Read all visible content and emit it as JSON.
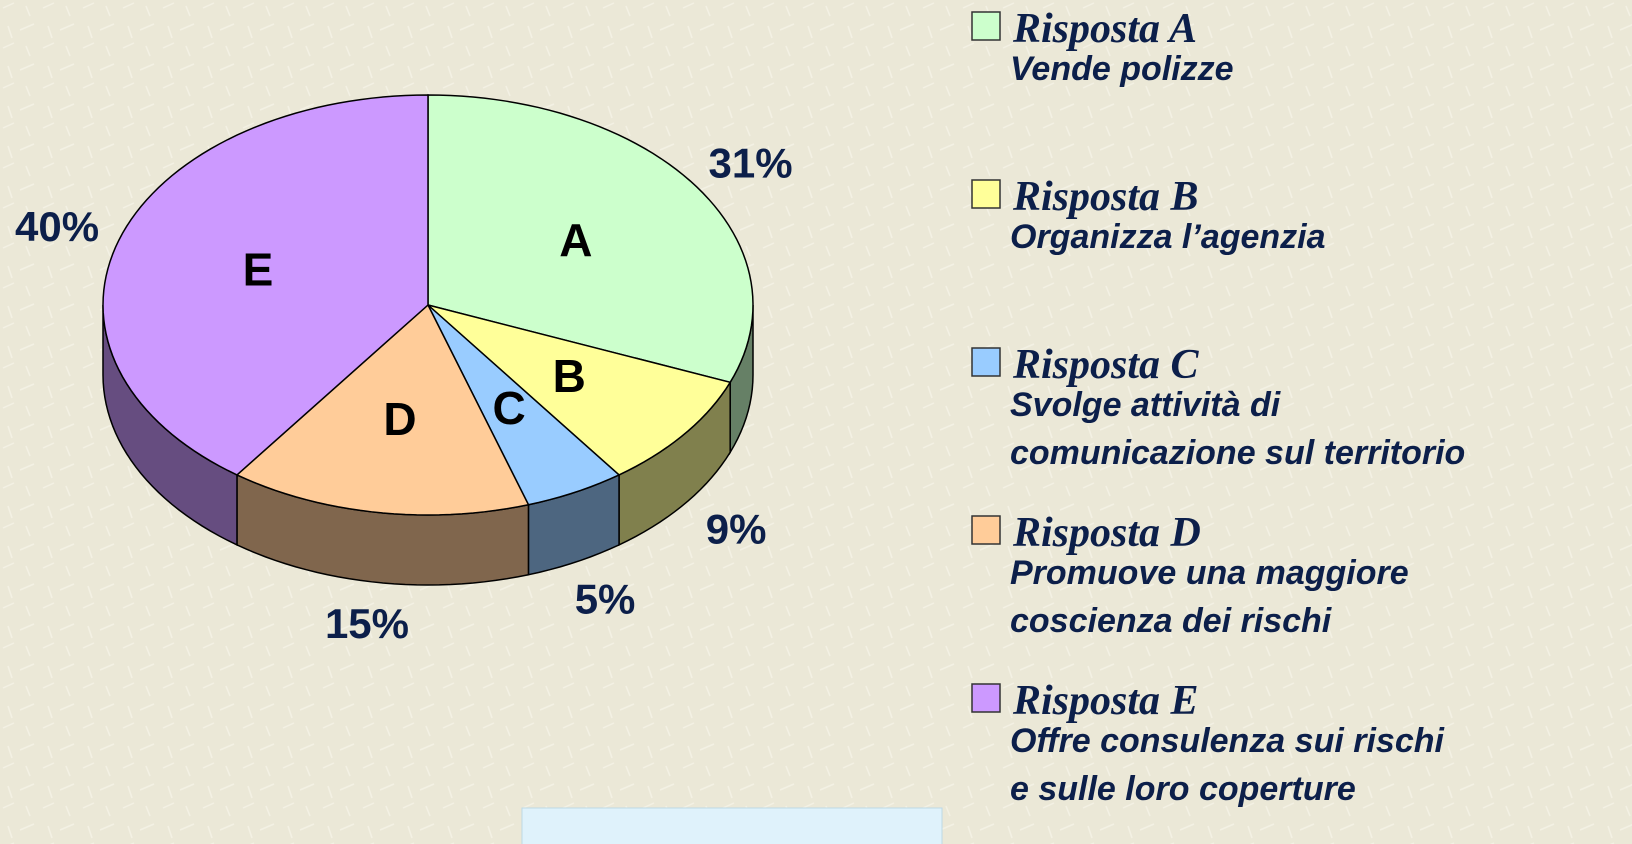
{
  "chart_data": {
    "type": "pie",
    "categories": [
      "A",
      "B",
      "C",
      "D",
      "E"
    ],
    "values": [
      31,
      9,
      5,
      15,
      40
    ],
    "value_labels": [
      "31%",
      "9%",
      "5%",
      "15%",
      "40%"
    ],
    "colors": [
      "#ccffcc",
      "#ffff99",
      "#99ccff",
      "#ffcc99",
      "#cc99ff"
    ],
    "series_names": [
      "Risposta A",
      "Risposta B",
      "Risposta C",
      "Risposta D",
      "Risposta E"
    ],
    "descriptions": [
      [
        "Vende polizze"
      ],
      [
        "Organizza l’agenzia"
      ],
      [
        "Svolge attività di",
        "comunicazione sul territorio"
      ],
      [
        "Promuove una maggiore",
        "coscienza dei rischi"
      ],
      [
        "Offre consulenza sui rischi",
        "e sulle loro coperture"
      ]
    ]
  }
}
